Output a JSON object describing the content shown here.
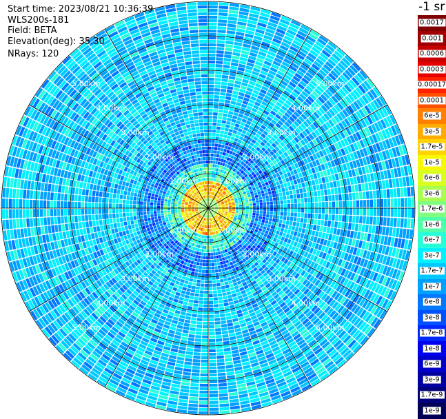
{
  "header": {
    "start_time": "Start time: 2023/08/21 10:36:39",
    "device": "WLS200s-181",
    "field": "Field: BETA",
    "elevation": "Elevation(deg): 35.30",
    "nrays": "NRays: 120"
  },
  "colorbar": {
    "unit_title": "-1 sr",
    "labels": [
      "0.0017",
      "0.001",
      "0.0006",
      "0.0003",
      "0.00017",
      "0.0001",
      "6e-5",
      "3e-5",
      "1.7e-5",
      "1e-5",
      "6e-6",
      "3e-6",
      "1.7e-6",
      "1e-6",
      "6e-7",
      "3e-7",
      "1.7e-7",
      "1e-7",
      "6e-8",
      "3e-8",
      "1.7e-8",
      "1e-8",
      "6e-9",
      "3e-9",
      "1.7e-9",
      "1e-9"
    ],
    "colors": [
      "#7f0000",
      "#a00000",
      "#c80000",
      "#e60000",
      "#ff2000",
      "#ff5000",
      "#ff8000",
      "#ffac00",
      "#ffd400",
      "#f8f800",
      "#d8ff20",
      "#a8ff50",
      "#80ff80",
      "#50ffa8",
      "#28ffd8",
      "#00f0ff",
      "#00c8ff",
      "#00a0ff",
      "#0078ff",
      "#0050ff",
      "#0028ff",
      "#0000f0",
      "#0000c8",
      "#0000a0",
      "#00007a",
      "#000055"
    ]
  },
  "chart_data": {
    "type": "heatmap",
    "projection": "polar PPI scan",
    "field": "BETA",
    "elevation_deg": 35.3,
    "n_rays": 120,
    "range_rings_km": [
      1,
      2,
      3,
      4,
      5
    ],
    "ring_labels": [
      "1.00km",
      "2.00km",
      "3.00km",
      "4.00km",
      "5.00km"
    ],
    "max_range_km": 6,
    "spokes": 12,
    "scale": "log",
    "value_range": [
      1e-09,
      0.0017
    ],
    "background_value": 1.7e-07,
    "near_range_value": 1.7e-05
  }
}
